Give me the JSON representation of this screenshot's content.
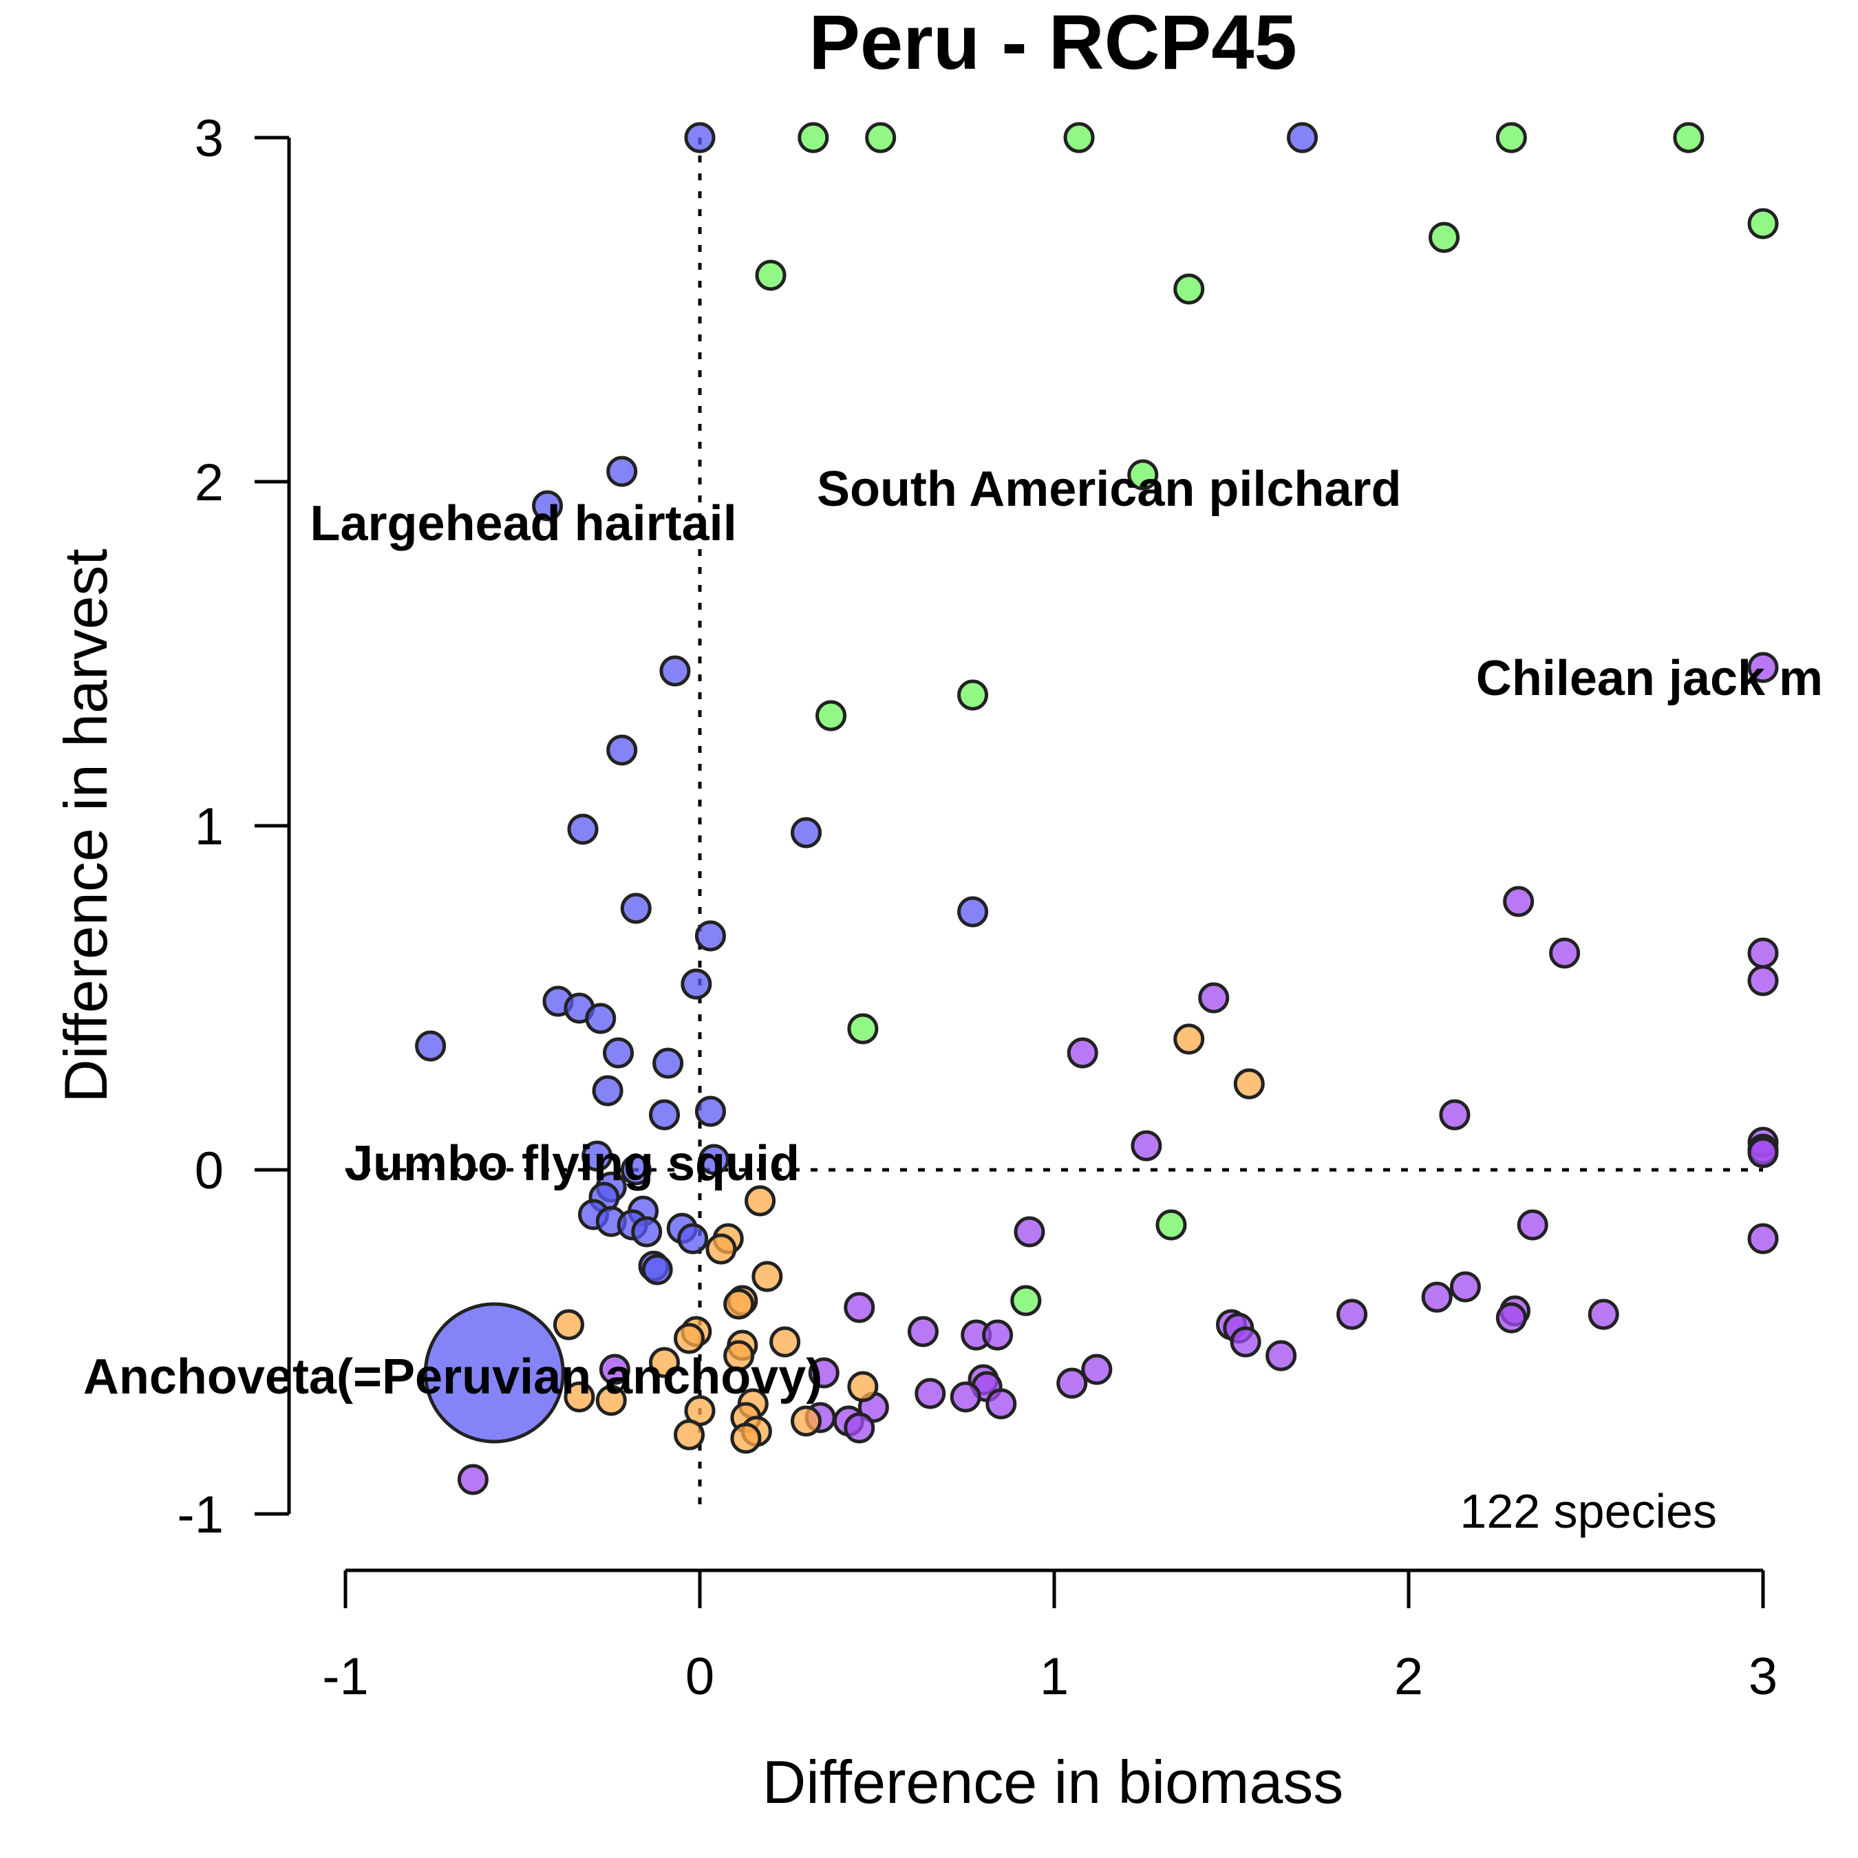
{
  "chart_data": {
    "type": "scatter",
    "title": "Peru - RCP45",
    "xlabel": "Difference in biomass",
    "ylabel": "Difference in harvest",
    "xlim": [
      -1,
      3
    ],
    "ylim": [
      -1,
      3
    ],
    "xticks": [
      "-1",
      "0",
      "1",
      "2",
      "3"
    ],
    "yticks": [
      "-1",
      "0",
      "1",
      "2",
      "3"
    ],
    "annotation": "122 species",
    "colors": {
      "blue": "#5b5bf5",
      "green": "#6ef55c",
      "purple": "#a34cf0",
      "orange": "#ffab4a"
    },
    "species_labels": [
      {
        "text": "Largehead hairtail",
        "x": -1.1,
        "y": 1.88
      },
      {
        "text": "South American pilchard",
        "x": 0.33,
        "y": 1.98
      },
      {
        "text": "Chilean jack m",
        "x": 2.19,
        "y": 1.43
      },
      {
        "text": "Jumbo flying squid",
        "x": -1.0,
        "y": 0.02
      },
      {
        "text": "Anchoveta(=Peruvian anchovy)",
        "x": -1.74,
        "y": -0.6
      }
    ],
    "points": [
      {
        "x": 0.0,
        "y": 3.0,
        "c": "blue"
      },
      {
        "x": 1.7,
        "y": 3.0,
        "c": "blue"
      },
      {
        "x": -0.22,
        "y": 2.03,
        "c": "blue"
      },
      {
        "x": -0.43,
        "y": 1.93,
        "c": "blue"
      },
      {
        "x": -0.07,
        "y": 1.45,
        "c": "blue"
      },
      {
        "x": -0.22,
        "y": 1.22,
        "c": "blue"
      },
      {
        "x": -0.33,
        "y": 0.99,
        "c": "blue"
      },
      {
        "x": 0.3,
        "y": 0.98,
        "c": "blue"
      },
      {
        "x": -0.18,
        "y": 0.76,
        "c": "blue"
      },
      {
        "x": 0.77,
        "y": 0.75,
        "c": "blue"
      },
      {
        "x": 0.03,
        "y": 0.68,
        "c": "blue"
      },
      {
        "x": -0.01,
        "y": 0.54,
        "c": "blue"
      },
      {
        "x": -0.4,
        "y": 0.49,
        "c": "blue"
      },
      {
        "x": -0.34,
        "y": 0.47,
        "c": "blue"
      },
      {
        "x": -0.28,
        "y": 0.44,
        "c": "blue"
      },
      {
        "x": -0.76,
        "y": 0.36,
        "c": "blue"
      },
      {
        "x": -0.23,
        "y": 0.34,
        "c": "blue"
      },
      {
        "x": -0.09,
        "y": 0.31,
        "c": "blue"
      },
      {
        "x": -0.26,
        "y": 0.23,
        "c": "blue"
      },
      {
        "x": 0.03,
        "y": 0.17,
        "c": "blue"
      },
      {
        "x": -0.1,
        "y": 0.16,
        "c": "blue"
      },
      {
        "x": -0.29,
        "y": 0.04,
        "c": "blue"
      },
      {
        "x": 0.04,
        "y": 0.03,
        "c": "blue"
      },
      {
        "x": -0.18,
        "y": 0.0,
        "c": "blue"
      },
      {
        "x": -0.25,
        "y": -0.05,
        "c": "blue"
      },
      {
        "x": -0.27,
        "y": -0.08,
        "c": "blue"
      },
      {
        "x": -0.16,
        "y": -0.12,
        "c": "blue"
      },
      {
        "x": -0.3,
        "y": -0.13,
        "c": "blue"
      },
      {
        "x": -0.25,
        "y": -0.15,
        "c": "blue"
      },
      {
        "x": -0.19,
        "y": -0.16,
        "c": "blue"
      },
      {
        "x": -0.05,
        "y": -0.17,
        "c": "blue"
      },
      {
        "x": -0.15,
        "y": -0.18,
        "c": "blue"
      },
      {
        "x": -0.02,
        "y": -0.2,
        "c": "blue"
      },
      {
        "x": -0.13,
        "y": -0.28,
        "c": "blue"
      },
      {
        "x": -0.12,
        "y": -0.29,
        "c": "blue"
      },
      {
        "x": -0.58,
        "y": -0.59,
        "c": "blue",
        "size": "large"
      },
      {
        "x": 0.32,
        "y": 3.0,
        "c": "green"
      },
      {
        "x": 0.51,
        "y": 3.0,
        "c": "green"
      },
      {
        "x": 1.07,
        "y": 3.0,
        "c": "green"
      },
      {
        "x": 2.29,
        "y": 3.0,
        "c": "green"
      },
      {
        "x": 2.79,
        "y": 3.0,
        "c": "green"
      },
      {
        "x": 3.0,
        "y": 2.75,
        "c": "green"
      },
      {
        "x": 2.1,
        "y": 2.71,
        "c": "green"
      },
      {
        "x": 0.2,
        "y": 2.6,
        "c": "green"
      },
      {
        "x": 1.38,
        "y": 2.56,
        "c": "green"
      },
      {
        "x": 1.25,
        "y": 2.02,
        "c": "green"
      },
      {
        "x": 0.77,
        "y": 1.38,
        "c": "green"
      },
      {
        "x": 0.37,
        "y": 1.32,
        "c": "green"
      },
      {
        "x": 0.46,
        "y": 0.41,
        "c": "green"
      },
      {
        "x": 1.33,
        "y": -0.16,
        "c": "green"
      },
      {
        "x": 0.92,
        "y": -0.38,
        "c": "green"
      },
      {
        "x": 3.0,
        "y": 1.46,
        "c": "purple"
      },
      {
        "x": 2.31,
        "y": 0.78,
        "c": "purple"
      },
      {
        "x": 2.44,
        "y": 0.63,
        "c": "purple"
      },
      {
        "x": 3.0,
        "y": 0.63,
        "c": "purple"
      },
      {
        "x": 3.0,
        "y": 0.55,
        "c": "purple"
      },
      {
        "x": 1.45,
        "y": 0.5,
        "c": "purple"
      },
      {
        "x": 1.08,
        "y": 0.34,
        "c": "purple"
      },
      {
        "x": 2.13,
        "y": 0.16,
        "c": "purple"
      },
      {
        "x": 1.26,
        "y": 0.07,
        "c": "purple"
      },
      {
        "x": 3.0,
        "y": 0.08,
        "c": "purple"
      },
      {
        "x": 3.0,
        "y": 0.06,
        "c": "purple"
      },
      {
        "x": 3.0,
        "y": 0.05,
        "c": "purple"
      },
      {
        "x": 2.35,
        "y": -0.16,
        "c": "purple"
      },
      {
        "x": 0.93,
        "y": -0.18,
        "c": "purple"
      },
      {
        "x": 3.0,
        "y": -0.2,
        "c": "purple"
      },
      {
        "x": 2.16,
        "y": -0.34,
        "c": "purple"
      },
      {
        "x": 2.08,
        "y": -0.37,
        "c": "purple"
      },
      {
        "x": 0.45,
        "y": -0.4,
        "c": "purple"
      },
      {
        "x": 2.3,
        "y": -0.41,
        "c": "purple"
      },
      {
        "x": 1.84,
        "y": -0.42,
        "c": "purple"
      },
      {
        "x": 2.55,
        "y": -0.42,
        "c": "purple"
      },
      {
        "x": 2.29,
        "y": -0.43,
        "c": "purple"
      },
      {
        "x": 1.5,
        "y": -0.45,
        "c": "purple"
      },
      {
        "x": 1.52,
        "y": -0.46,
        "c": "purple"
      },
      {
        "x": 0.63,
        "y": -0.47,
        "c": "purple"
      },
      {
        "x": 0.78,
        "y": -0.48,
        "c": "purple"
      },
      {
        "x": 0.84,
        "y": -0.48,
        "c": "purple"
      },
      {
        "x": 1.54,
        "y": -0.5,
        "c": "purple"
      },
      {
        "x": 1.64,
        "y": -0.54,
        "c": "purple"
      },
      {
        "x": -0.24,
        "y": -0.58,
        "c": "purple"
      },
      {
        "x": 1.12,
        "y": -0.58,
        "c": "purple"
      },
      {
        "x": 0.35,
        "y": -0.59,
        "c": "purple"
      },
      {
        "x": 0.8,
        "y": -0.61,
        "c": "purple"
      },
      {
        "x": 1.05,
        "y": -0.62,
        "c": "purple"
      },
      {
        "x": 0.81,
        "y": -0.63,
        "c": "purple"
      },
      {
        "x": 0.65,
        "y": -0.65,
        "c": "purple"
      },
      {
        "x": 0.75,
        "y": -0.66,
        "c": "purple"
      },
      {
        "x": 0.85,
        "y": -0.68,
        "c": "purple"
      },
      {
        "x": 0.49,
        "y": -0.69,
        "c": "purple"
      },
      {
        "x": 0.34,
        "y": -0.72,
        "c": "purple"
      },
      {
        "x": 0.42,
        "y": -0.73,
        "c": "purple"
      },
      {
        "x": 0.45,
        "y": -0.75,
        "c": "purple"
      },
      {
        "x": -0.64,
        "y": -0.9,
        "c": "purple"
      },
      {
        "x": 1.38,
        "y": 0.38,
        "c": "orange"
      },
      {
        "x": 1.55,
        "y": 0.25,
        "c": "orange"
      },
      {
        "x": 0.17,
        "y": -0.09,
        "c": "orange"
      },
      {
        "x": 0.08,
        "y": -0.2,
        "c": "orange"
      },
      {
        "x": 0.06,
        "y": -0.23,
        "c": "orange"
      },
      {
        "x": 0.19,
        "y": -0.31,
        "c": "orange"
      },
      {
        "x": 0.12,
        "y": -0.38,
        "c": "orange"
      },
      {
        "x": 0.11,
        "y": -0.39,
        "c": "orange"
      },
      {
        "x": -0.37,
        "y": -0.45,
        "c": "orange"
      },
      {
        "x": -0.01,
        "y": -0.47,
        "c": "orange"
      },
      {
        "x": -0.03,
        "y": -0.49,
        "c": "orange"
      },
      {
        "x": 0.24,
        "y": -0.5,
        "c": "orange"
      },
      {
        "x": 0.12,
        "y": -0.51,
        "c": "orange"
      },
      {
        "x": 0.11,
        "y": -0.54,
        "c": "orange"
      },
      {
        "x": -0.1,
        "y": -0.56,
        "c": "orange"
      },
      {
        "x": 0.46,
        "y": -0.63,
        "c": "orange"
      },
      {
        "x": -0.34,
        "y": -0.66,
        "c": "orange"
      },
      {
        "x": -0.25,
        "y": -0.67,
        "c": "orange"
      },
      {
        "x": 0.15,
        "y": -0.68,
        "c": "orange"
      },
      {
        "x": 0.0,
        "y": -0.7,
        "c": "orange"
      },
      {
        "x": 0.13,
        "y": -0.72,
        "c": "orange"
      },
      {
        "x": 0.3,
        "y": -0.73,
        "c": "orange"
      },
      {
        "x": 0.16,
        "y": -0.76,
        "c": "orange"
      },
      {
        "x": -0.03,
        "y": -0.77,
        "c": "orange"
      },
      {
        "x": 0.13,
        "y": -0.78,
        "c": "orange"
      }
    ]
  }
}
